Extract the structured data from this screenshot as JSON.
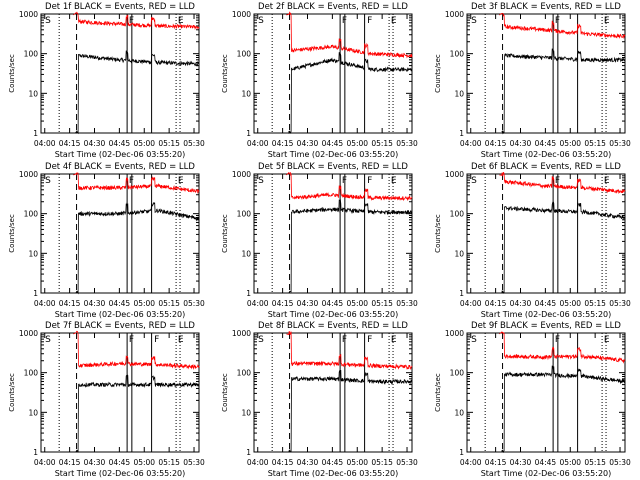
{
  "chart_data": [
    {
      "type": "line",
      "title": "Det 1f BLACK = Events, RED = LLD",
      "xlabel": "Start Time (02-Dec-06 03:55:20)",
      "ylabel": "Counts/sec",
      "series": [
        {
          "color": "#000000",
          "base": [
            1,
            90,
            70,
            60,
            55
          ]
        },
        {
          "color": "#ff0000",
          "base": [
            1000,
            650,
            560,
            500,
            470
          ]
        }
      ],
      "markers": [
        "S",
        "F",
        "E"
      ]
    },
    {
      "type": "line",
      "title": "Det 2f BLACK = Events, RED = LLD",
      "xlabel": "Start Time (02-Dec-06 03:55:20)",
      "ylabel": "Counts/sec",
      "series": [
        {
          "color": "#000000",
          "base": [
            1,
            40,
            70,
            40,
            40
          ]
        },
        {
          "color": "#ff0000",
          "base": [
            1000,
            120,
            150,
            100,
            90
          ]
        }
      ],
      "markers": [
        "S",
        "F",
        "F",
        "E"
      ]
    },
    {
      "type": "line",
      "title": "Det 3f BLACK = Events, RED = LLD",
      "xlabel": "Start Time (02-Dec-06 03:55:20)",
      "ylabel": "Counts/sec",
      "series": [
        {
          "color": "#000000",
          "base": [
            1,
            90,
            80,
            70,
            70
          ]
        },
        {
          "color": "#ff0000",
          "base": [
            1000,
            480,
            400,
            320,
            270
          ]
        }
      ],
      "markers": [
        "S",
        "F",
        "E"
      ]
    },
    {
      "type": "line",
      "title": "Det 4f BLACK = Events, RED = LLD",
      "xlabel": "Start Time (02-Dec-06 03:55:20)",
      "ylabel": "Counts/sec",
      "series": [
        {
          "color": "#000000",
          "base": [
            1,
            100,
            100,
            120,
            75
          ]
        },
        {
          "color": "#ff0000",
          "base": [
            1000,
            450,
            450,
            500,
            360
          ]
        }
      ],
      "markers": [
        "S",
        "F",
        "E"
      ]
    },
    {
      "type": "line",
      "title": "Det 5f BLACK = Events, RED = LLD",
      "xlabel": "Start Time (02-Dec-06 03:55:20)",
      "ylabel": "Counts/sec",
      "series": [
        {
          "color": "#000000",
          "base": [
            1,
            110,
            130,
            110,
            110
          ]
        },
        {
          "color": "#ff0000",
          "base": [
            1000,
            250,
            300,
            250,
            250
          ]
        }
      ],
      "markers": [
        "S",
        "F",
        "F",
        "E"
      ]
    },
    {
      "type": "line",
      "title": "Det 6f BLACK = Events, RED = LLD",
      "xlabel": "Start Time (02-Dec-06 03:55:20)",
      "ylabel": "Counts/sec",
      "series": [
        {
          "color": "#000000",
          "base": [
            1,
            140,
            120,
            110,
            80
          ]
        },
        {
          "color": "#ff0000",
          "base": [
            1000,
            650,
            500,
            450,
            360
          ]
        }
      ],
      "markers": [
        "S",
        "F",
        "E"
      ]
    },
    {
      "type": "line",
      "title": "Det 7f BLACK = Events, RED = LLD",
      "xlabel": "Start Time (02-Dec-06 03:55:20)",
      "ylabel": "Counts/sec",
      "series": [
        {
          "color": "#000000",
          "base": [
            1,
            50,
            50,
            50,
            50
          ]
        },
        {
          "color": "#ff0000",
          "base": [
            1000,
            150,
            170,
            160,
            140
          ]
        }
      ],
      "markers": [
        "S",
        "F",
        "F",
        "E"
      ]
    },
    {
      "type": "line",
      "title": "Det 8f BLACK = Events, RED = LLD",
      "xlabel": "Start Time (02-Dec-06 03:55:20)",
      "ylabel": "Counts/sec",
      "series": [
        {
          "color": "#000000",
          "base": [
            1,
            70,
            70,
            60,
            60
          ]
        },
        {
          "color": "#ff0000",
          "base": [
            1000,
            170,
            170,
            150,
            140
          ]
        }
      ],
      "markers": [
        "S",
        "F",
        "F",
        "E"
      ]
    },
    {
      "type": "line",
      "title": "Det 9f BLACK = Events, RED = LLD",
      "xlabel": "Start Time (02-Dec-06 03:55:20)",
      "ylabel": "Counts/sec",
      "series": [
        {
          "color": "#000000",
          "base": [
            1,
            90,
            90,
            80,
            60
          ]
        },
        {
          "color": "#ff0000",
          "base": [
            1000,
            260,
            250,
            260,
            200
          ]
        }
      ],
      "markers": [
        "S",
        "F",
        "E"
      ]
    }
  ],
  "shared": {
    "x_ticks": [
      "04:00",
      "04:15",
      "04:30",
      "04:45",
      "05:00",
      "05:15",
      "05:30"
    ],
    "y_ticks": [
      "1",
      "10",
      "100",
      "1000"
    ],
    "yscale": "log",
    "ylim": [
      1,
      1000
    ]
  }
}
